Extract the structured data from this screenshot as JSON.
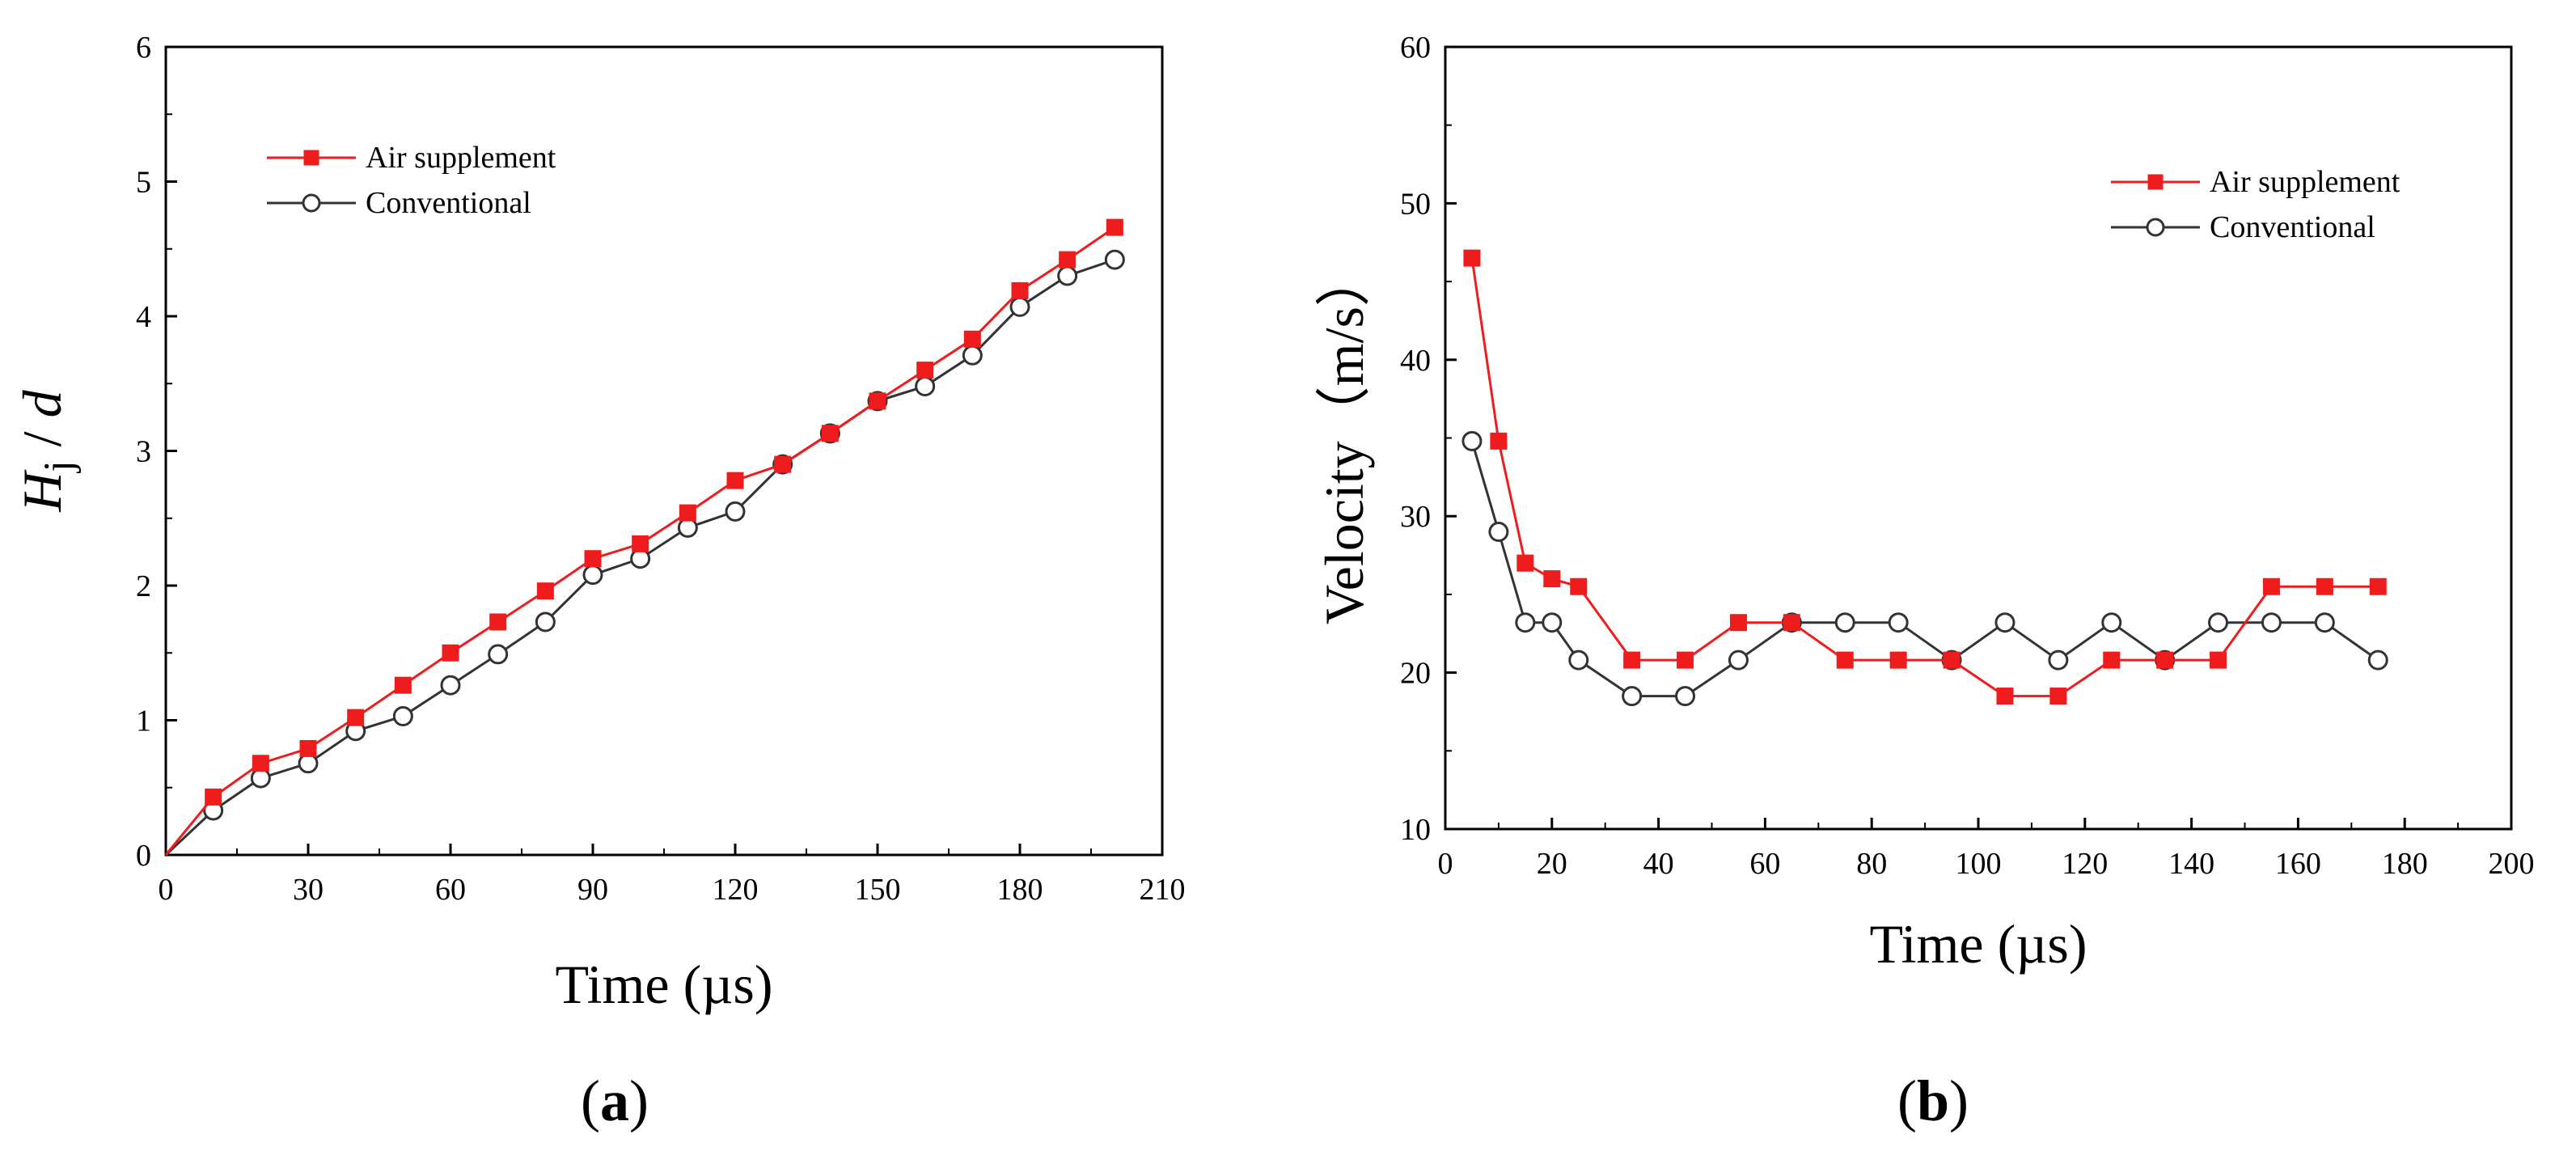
{
  "chart_data": [
    {
      "type": "line",
      "panel_label": "a",
      "xlabel": "Time (µs)",
      "ylabel": {
        "H": "H",
        "sub": "j",
        "rest": " / ",
        "d": "d"
      },
      "xlim": [
        0,
        210
      ],
      "ylim": [
        0,
        6
      ],
      "xticks": [
        "0",
        "30",
        "60",
        "90",
        "120",
        "150",
        "180",
        "210"
      ],
      "yticks": [
        "0",
        "1",
        "2",
        "3",
        "4",
        "5",
        "6"
      ],
      "legend_position": "top-left",
      "grid": false,
      "series": [
        {
          "name": "Air supplement",
          "color": "#ee1c1c",
          "marker": "filled-square",
          "x": [
            0,
            10,
            20,
            30,
            40,
            50,
            60,
            70,
            80,
            90,
            100,
            110,
            120,
            130,
            140,
            150,
            160,
            170,
            180,
            190,
            200
          ],
          "y": [
            0,
            0.43,
            0.68,
            0.79,
            1.02,
            1.26,
            1.5,
            1.73,
            1.96,
            2.2,
            2.31,
            2.54,
            2.78,
            2.9,
            3.13,
            3.37,
            3.6,
            3.83,
            4.19,
            4.42,
            4.66
          ]
        },
        {
          "name": "Conventional",
          "color": "#333333",
          "marker": "open-circle",
          "x": [
            0,
            10,
            20,
            30,
            40,
            50,
            60,
            70,
            80,
            90,
            100,
            110,
            120,
            130,
            140,
            150,
            160,
            170,
            180,
            190,
            200
          ],
          "y": [
            0,
            0.33,
            0.57,
            0.68,
            0.92,
            1.03,
            1.26,
            1.49,
            1.73,
            2.08,
            2.2,
            2.43,
            2.55,
            2.9,
            3.13,
            3.37,
            3.48,
            3.71,
            4.07,
            4.3,
            4.42
          ]
        }
      ]
    },
    {
      "type": "line",
      "panel_label": "b",
      "xlabel": "Time (µs)",
      "ylabel": "Velocity（m/s）",
      "xlim": [
        0,
        200
      ],
      "ylim": [
        10,
        60
      ],
      "xticks": [
        "0",
        "20",
        "40",
        "60",
        "80",
        "100",
        "120",
        "140",
        "160",
        "180",
        "200"
      ],
      "yticks": [
        "10",
        "20",
        "30",
        "40",
        "50",
        "60"
      ],
      "legend_position": "top-right",
      "grid": false,
      "series": [
        {
          "name": "Air supplement",
          "color": "#ee1c1c",
          "marker": "filled-square",
          "x": [
            5,
            10,
            15,
            20,
            25,
            35,
            45,
            55,
            65,
            75,
            85,
            95,
            105,
            115,
            125,
            135,
            145,
            155,
            165,
            175
          ],
          "y": [
            46.5,
            34.8,
            27.0,
            26.0,
            25.5,
            20.8,
            20.8,
            23.2,
            23.2,
            20.8,
            20.8,
            20.8,
            18.5,
            18.5,
            20.8,
            20.8,
            20.8,
            25.5,
            25.5,
            25.5
          ]
        },
        {
          "name": "Conventional",
          "color": "#333333",
          "marker": "open-circle",
          "x": [
            5,
            10,
            15,
            20,
            25,
            35,
            45,
            55,
            65,
            75,
            85,
            95,
            105,
            115,
            125,
            135,
            145,
            155,
            165,
            175
          ],
          "y": [
            34.8,
            29.0,
            23.2,
            23.2,
            20.8,
            18.5,
            18.5,
            20.8,
            23.2,
            23.2,
            23.2,
            20.8,
            23.2,
            20.8,
            23.2,
            20.8,
            23.2,
            23.2,
            23.2,
            20.8
          ]
        }
      ]
    }
  ]
}
